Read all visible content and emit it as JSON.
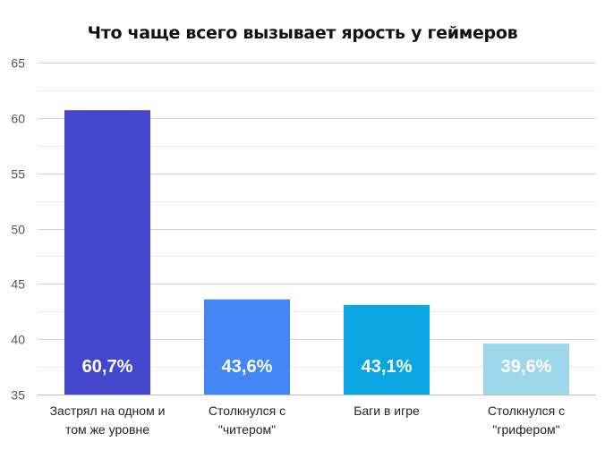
{
  "chart_data": {
    "type": "bar",
    "title": "Что чаще всего вызывает ярость у геймеров",
    "categories": [
      [
        "Застрял на одном и",
        "том же уровне"
      ],
      [
        "Столкнулся с",
        "\"читером\""
      ],
      [
        "Баги в игре"
      ],
      [
        "Столкнулся с",
        "\"грифером\""
      ]
    ],
    "values": [
      60.7,
      43.6,
      43.1,
      39.6
    ],
    "data_labels": [
      "60,7%",
      "43,6%",
      "43,1%",
      "39,6%"
    ],
    "colors": [
      "#4347CE",
      "#4287F5",
      "#0AA5E3",
      "#9DD8EA"
    ],
    "y_ticks": [
      "35",
      "40",
      "45",
      "50",
      "55",
      "60",
      "65"
    ],
    "ylim": [
      35,
      65
    ],
    "grid": true,
    "xlabel": "",
    "ylabel": ""
  }
}
